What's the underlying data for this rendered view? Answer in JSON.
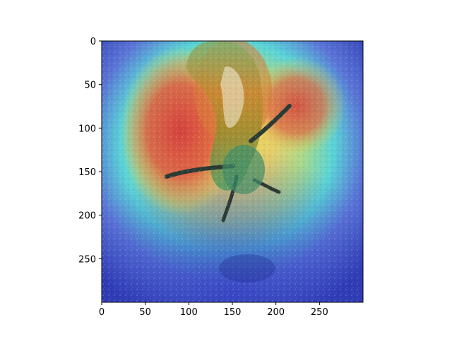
{
  "image": {
    "subject": "slug-on-gravel",
    "overlay": "heatmap-jet",
    "colors": {
      "ground": "#9aa39a",
      "ground_shadow": "#5c6460",
      "slug_body": "#8b8a3a",
      "slug_highlight": "#f1efe0",
      "heat_red": "#d7473a",
      "heat_yellow": "#e7d84a",
      "heat_cyan": "#57d5d6",
      "heat_blue": "#3b45c8"
    }
  },
  "axes": {
    "x_ticks": [
      "0",
      "50",
      "100",
      "150",
      "200",
      "250"
    ],
    "y_ticks": [
      "0",
      "50",
      "100",
      "150",
      "200",
      "250"
    ],
    "x_values": [
      0,
      50,
      100,
      150,
      200,
      250
    ],
    "y_values": [
      0,
      50,
      100,
      150,
      200,
      250
    ],
    "xlim": [
      0,
      300
    ],
    "ylim": [
      0,
      300
    ]
  }
}
